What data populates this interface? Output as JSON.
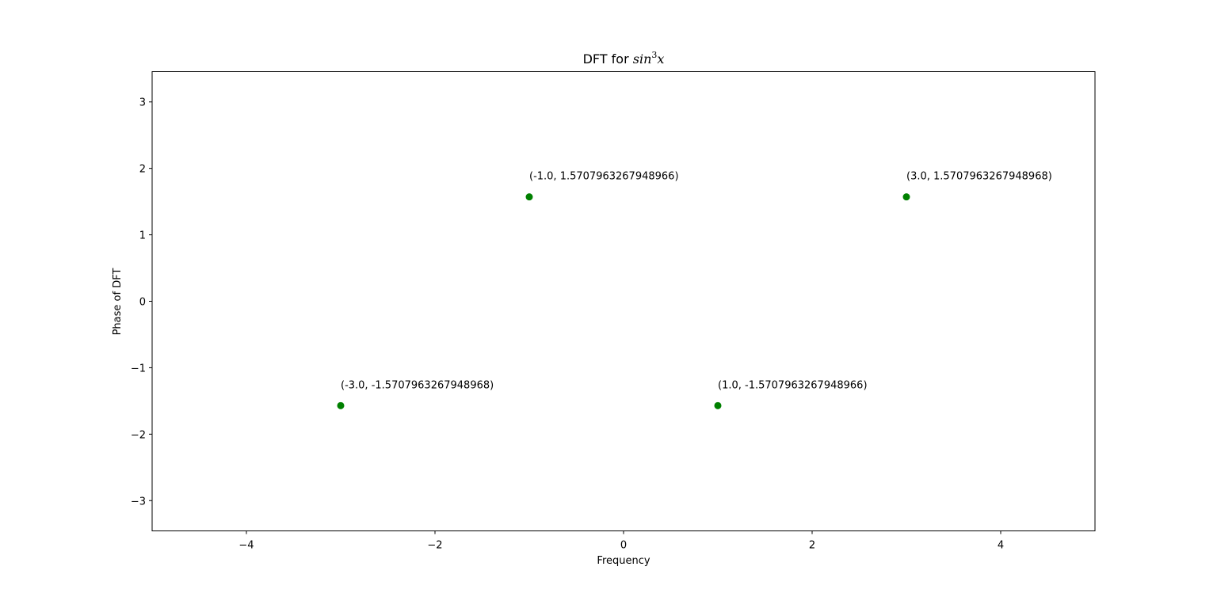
{
  "chart_data": {
    "type": "scatter",
    "title": {
      "prefix": "DFT for ",
      "math_base": "sin",
      "math_sup": "3",
      "math_var": "x"
    },
    "xlabel": "Frequency",
    "ylabel": "Phase of DFT",
    "xlim": [
      -5.0,
      5.0
    ],
    "ylim": [
      -3.4557519189487724,
      3.4557519189487724
    ],
    "xticks": [
      -4,
      -2,
      0,
      2,
      4
    ],
    "xtick_labels": [
      "−4",
      "−2",
      "0",
      "2",
      "4"
    ],
    "yticks": [
      -3,
      -2,
      -1,
      0,
      1,
      2,
      3
    ],
    "ytick_labels": [
      "−3",
      "−2",
      "−1",
      "0",
      "1",
      "2",
      "3"
    ],
    "grid": false,
    "marker_color": "#008000",
    "points": [
      {
        "x": -3.0,
        "y": -1.5707963267948968,
        "label": "(-3.0, -1.5707963267948968)"
      },
      {
        "x": -1.0,
        "y": 1.5707963267948966,
        "label": "(-1.0, 1.5707963267948966)"
      },
      {
        "x": 1.0,
        "y": -1.5707963267948966,
        "label": "(1.0, -1.5707963267948966)"
      },
      {
        "x": 3.0,
        "y": 1.5707963267948968,
        "label": "(3.0, 1.5707963267948968)"
      }
    ]
  }
}
